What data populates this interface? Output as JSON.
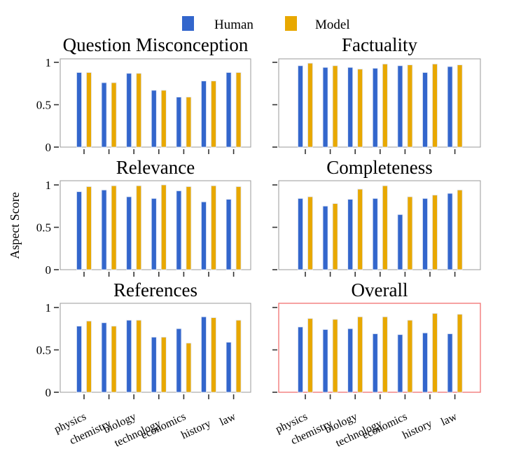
{
  "chart_data": {
    "type": "bar",
    "layout": "3x2 grid of grouped bar charts",
    "ylabel": "Aspect Score",
    "ylim": [
      0,
      1
    ],
    "yticks": [
      0,
      0.5,
      1
    ],
    "ytick_labels": [
      "0",
      "0.5",
      "1"
    ],
    "categories": [
      "physics",
      "chemistry",
      "biology",
      "technology",
      "economics",
      "history",
      "law"
    ],
    "legend": {
      "placement": "top-center",
      "entries": [
        {
          "name": "Human",
          "color": "#3366cc"
        },
        {
          "name": "Model",
          "color": "#e8a800"
        }
      ]
    },
    "highlight_color": "#f07070",
    "panels": [
      {
        "title": "Question Misconception",
        "series": [
          {
            "name": "Human",
            "values": [
              0.88,
              0.76,
              0.87,
              0.67,
              0.59,
              0.78,
              0.88
            ]
          },
          {
            "name": "Model",
            "values": [
              0.88,
              0.76,
              0.87,
              0.67,
              0.59,
              0.78,
              0.88
            ]
          }
        ]
      },
      {
        "title": "Factuality",
        "series": [
          {
            "name": "Human",
            "values": [
              0.96,
              0.94,
              0.94,
              0.93,
              0.96,
              0.88,
              0.95
            ]
          },
          {
            "name": "Model",
            "values": [
              0.99,
              0.96,
              0.92,
              0.98,
              0.97,
              0.98,
              0.97
            ]
          }
        ]
      },
      {
        "title": "Relevance",
        "series": [
          {
            "name": "Human",
            "values": [
              0.92,
              0.94,
              0.86,
              0.84,
              0.93,
              0.8,
              0.83
            ]
          },
          {
            "name": "Model",
            "values": [
              0.98,
              0.99,
              0.99,
              1.0,
              0.98,
              0.99,
              0.98
            ]
          }
        ]
      },
      {
        "title": "Completeness",
        "series": [
          {
            "name": "Human",
            "values": [
              0.84,
              0.75,
              0.83,
              0.84,
              0.65,
              0.84,
              0.9
            ]
          },
          {
            "name": "Model",
            "values": [
              0.86,
              0.78,
              0.95,
              0.99,
              0.86,
              0.88,
              0.94
            ]
          }
        ]
      },
      {
        "title": "References",
        "series": [
          {
            "name": "Human",
            "values": [
              0.78,
              0.82,
              0.85,
              0.65,
              0.75,
              0.89,
              0.59
            ]
          },
          {
            "name": "Model",
            "values": [
              0.84,
              0.78,
              0.85,
              0.65,
              0.58,
              0.88,
              0.85
            ]
          }
        ]
      },
      {
        "title": "Overall",
        "highlighted": true,
        "series": [
          {
            "name": "Human",
            "values": [
              0.77,
              0.74,
              0.75,
              0.69,
              0.68,
              0.7,
              0.69
            ]
          },
          {
            "name": "Model",
            "values": [
              0.87,
              0.86,
              0.89,
              0.89,
              0.85,
              0.93,
              0.92
            ]
          }
        ]
      }
    ]
  }
}
